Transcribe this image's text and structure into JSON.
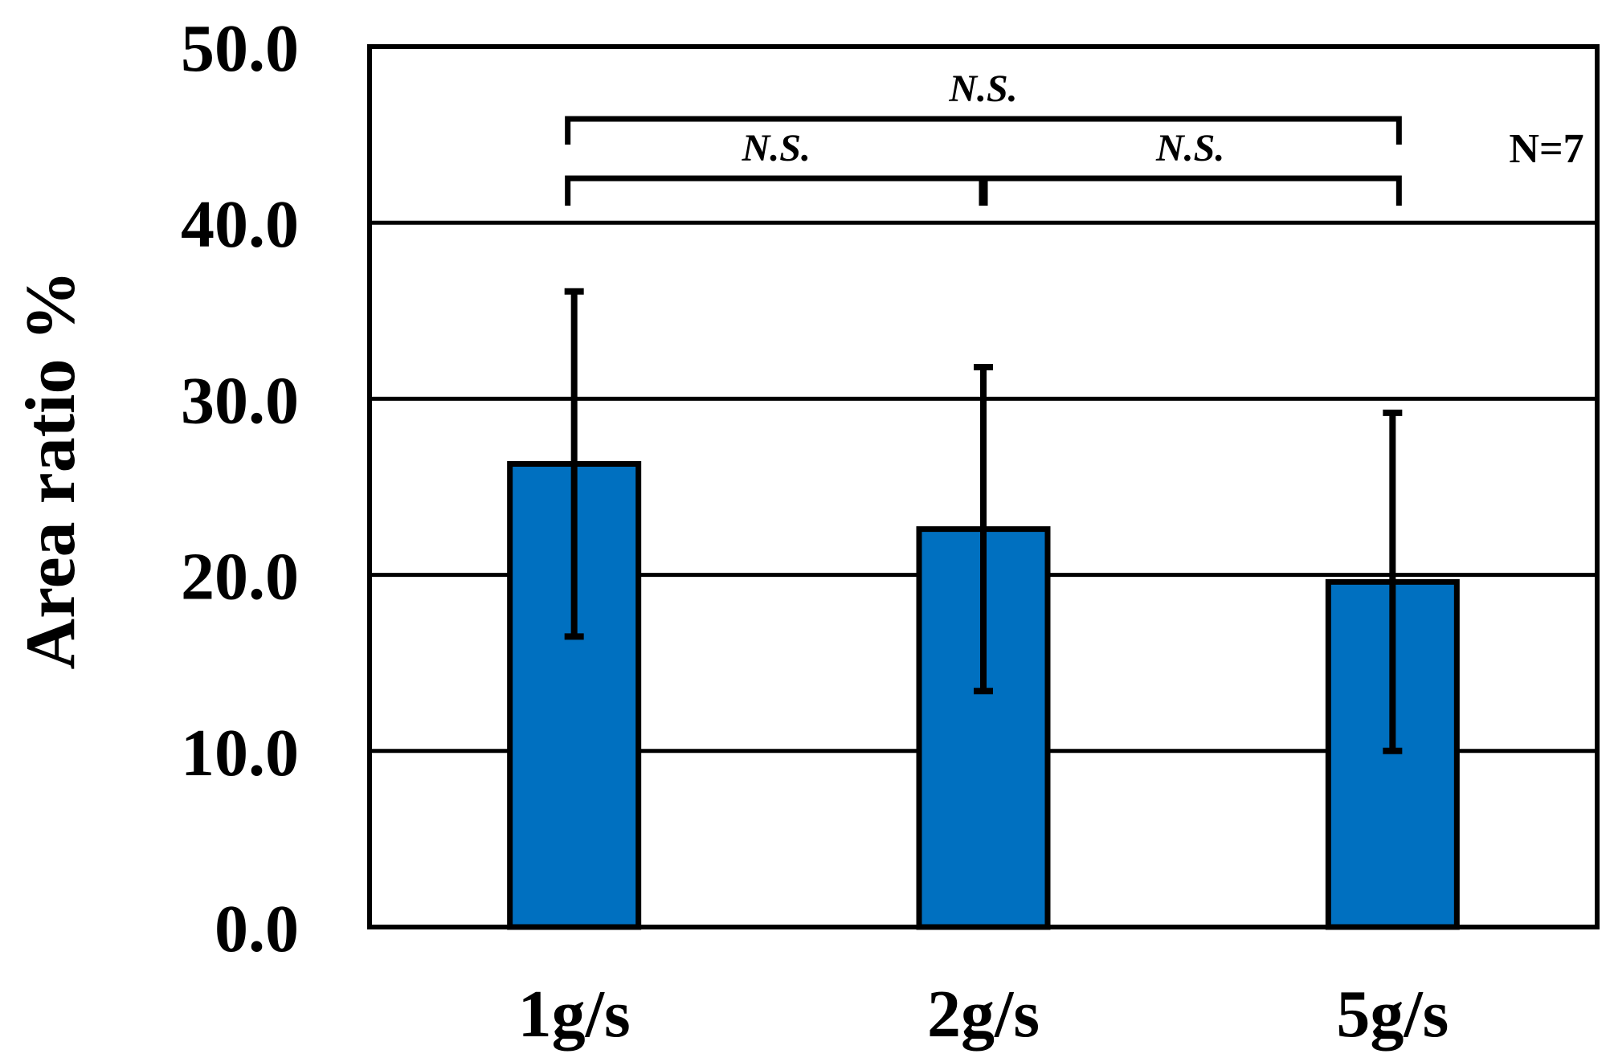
{
  "chart_data": {
    "type": "bar",
    "categories": [
      "1g/s",
      "2g/s",
      "5g/s"
    ],
    "values": [
      26.3,
      22.6,
      19.6
    ],
    "error_bars": [
      9.8,
      9.2,
      9.6
    ],
    "ylabel": "Area ratio  %",
    "ylim": [
      0,
      50
    ],
    "yticks": [
      "0.0",
      "10.0",
      "20.0",
      "30.0",
      "40.0",
      "50.0"
    ],
    "grid": true,
    "bar_color": "#0070C0",
    "annotations": {
      "sample_size": "N=7",
      "comparisons": [
        {
          "from": 0,
          "to": 2,
          "label": "N.S."
        },
        {
          "from": 0,
          "to": 1,
          "label": "N.S."
        },
        {
          "from": 1,
          "to": 2,
          "label": "N.S."
        }
      ]
    }
  }
}
